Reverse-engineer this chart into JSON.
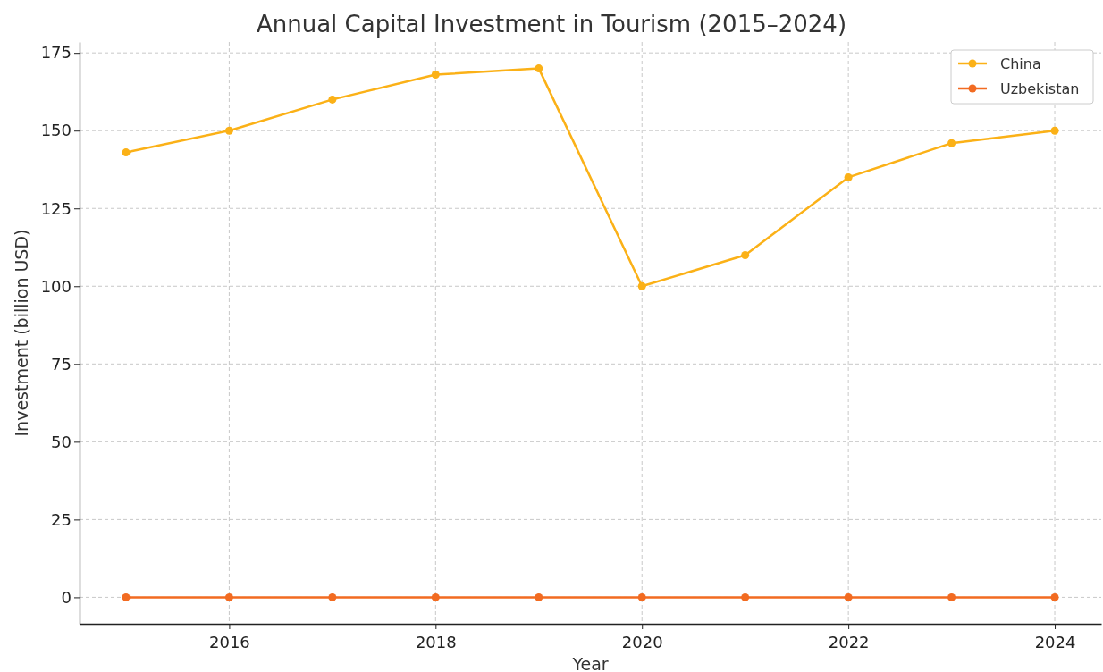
{
  "chart_data": {
    "type": "line",
    "title": "Annual Capital Investment in Tourism (2015–2024)",
    "xlabel": "Year",
    "ylabel": "Investment (billion USD)",
    "x": [
      2015,
      2016,
      2017,
      2018,
      2019,
      2020,
      2021,
      2022,
      2023,
      2024
    ],
    "series": [
      {
        "name": "China",
        "color": "#fbb117",
        "values": [
          143,
          150,
          160,
          168,
          170,
          100,
          110,
          135,
          146,
          150
        ]
      },
      {
        "name": "Uzbekistan",
        "color": "#f26b21",
        "values": [
          0,
          0,
          0,
          0,
          0,
          0,
          0,
          0,
          0,
          0
        ]
      }
    ],
    "xlim": [
      2014.55,
      2024.45
    ],
    "xticks": [
      2016,
      2018,
      2020,
      2022,
      2024
    ],
    "ylim": [
      -8.5,
      178.5
    ],
    "yticks": [
      0,
      25,
      50,
      75,
      100,
      125,
      150,
      175
    ],
    "grid": true,
    "legend": "top right",
    "marker": "circle",
    "line_style": "solid"
  }
}
